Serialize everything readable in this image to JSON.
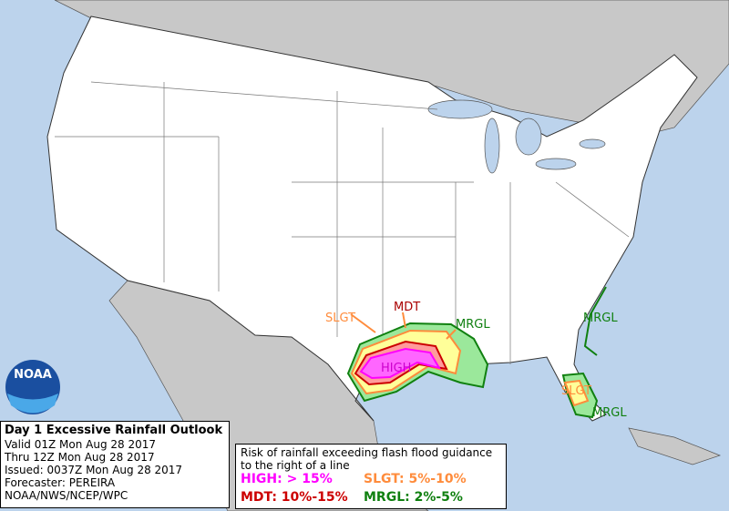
{
  "info": {
    "title": "Day 1 Excessive Rainfall Outlook",
    "lines": [
      "Valid 01Z Mon Aug 28 2017",
      "Thru 12Z Mon Aug 28 2017",
      "Issued: 0037Z Mon Aug 28 2017",
      "Forecaster: PEREIRA",
      "NOAA/NWS/NCEP/WPC"
    ]
  },
  "legend": {
    "heading": [
      "Risk of rainfall exceeding flash flood guidance",
      "to the right of a line"
    ],
    "items": [
      "HIGH: > 15%",
      "SLGT: 5%-10%",
      "MDT: 10%-15%",
      "MRGL: 2%-5%"
    ]
  },
  "map_labels": [
    "SLGT",
    "MDT",
    "MRGL",
    "HIGH",
    "MRGL",
    "SLGT",
    "MRGL"
  ],
  "logo": "NOAA"
}
